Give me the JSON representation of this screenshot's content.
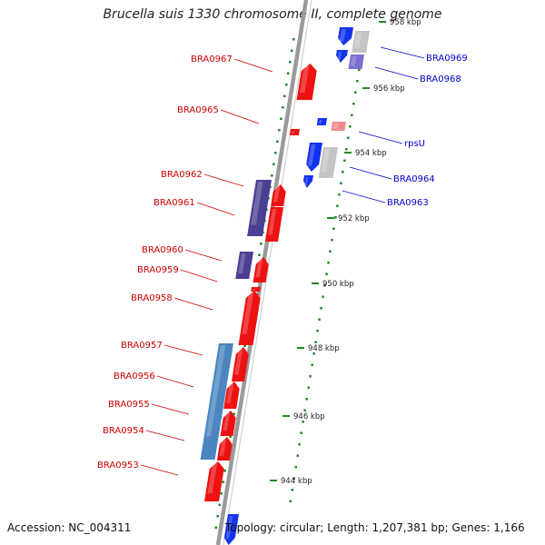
{
  "title": "Brucella suis 1330 chromosome II, complete genome",
  "accession": "Accession: NC_004311",
  "summary": "Topology: circular; Length: 1,207,381 bp; Genes: 1,166",
  "ruler": [
    "944 kbp",
    "946 kbp",
    "948 kbp",
    "950 kbp",
    "952 kbp",
    "954 kbp",
    "956 kbp",
    "958 kbp"
  ],
  "genes_reverse": [
    "BRA0967",
    "BRA0965",
    "BRA0962",
    "BRA0961",
    "BRA0960",
    "BRA0959",
    "BRA0958",
    "BRA0957",
    "BRA0956",
    "BRA0955",
    "BRA0954",
    "BRA0953"
  ],
  "genes_forward": [
    "BRA0969",
    "BRA0968",
    "rpsU",
    "BRA0964",
    "BRA0963"
  ],
  "colors": {
    "reverse_label": "#cc0000",
    "forward_label": "#0000cc",
    "cds_red": "#ee1111",
    "cds_blue": "#1133ee",
    "cds_purple": "#4a3f93",
    "cds_steel": "#4b86c0",
    "cds_grey": "#c4c4c4",
    "cds_pink": "#f08a8a",
    "backbone": "#888888",
    "gc_tick": "#1e8a1e"
  }
}
